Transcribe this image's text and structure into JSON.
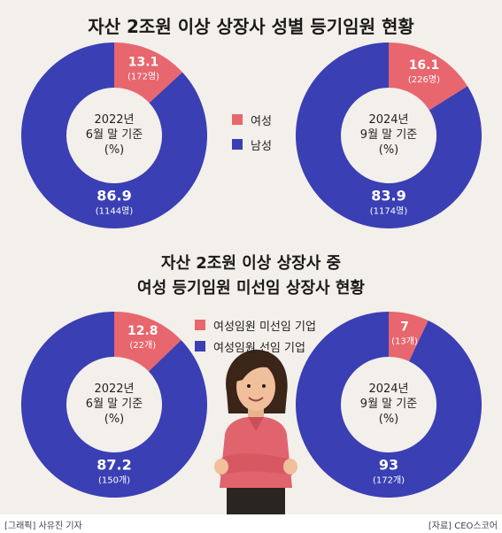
{
  "title_top": "자산 2조원 이상 상장사 성별 등기임원 현황",
  "title_bottom_line1": "자산 2조원 이상 상장사 중",
  "title_bottom_line2": "여성 등기임원 미선임 상장사 현황",
  "colors": {
    "pink": "#e8666e",
    "blue": "#3a3fb4",
    "background": "#f3efea"
  },
  "chart_data": [
    {
      "type": "pie",
      "center_label": [
        "2022년",
        "6월 말 기준",
        "(%)"
      ],
      "legend": [
        "여성",
        "남성"
      ],
      "slices": [
        {
          "label": "여성",
          "value": 13.1,
          "value_text": "13.1",
          "sub": "(172명)"
        },
        {
          "label": "남성",
          "value": 86.9,
          "value_text": "86.9",
          "sub": "(1144명)"
        }
      ]
    },
    {
      "type": "pie",
      "center_label": [
        "2024년",
        "9월 말 기준",
        "(%)"
      ],
      "legend": [
        "여성",
        "남성"
      ],
      "slices": [
        {
          "label": "여성",
          "value": 16.1,
          "value_text": "16.1",
          "sub": "(226명)"
        },
        {
          "label": "남성",
          "value": 83.9,
          "value_text": "83.9",
          "sub": "(1174명)"
        }
      ]
    },
    {
      "type": "pie",
      "center_label": [
        "2022년",
        "6월 말 기준",
        "(%)"
      ],
      "legend": [
        "여성임원 미선임 기업",
        "여성임원 선임 기업"
      ],
      "slices": [
        {
          "label": "여성임원 미선임 기업",
          "value": 12.8,
          "value_text": "12.8",
          "sub": "(22개)"
        },
        {
          "label": "여성임원 선임 기업",
          "value": 87.2,
          "value_text": "87.2",
          "sub": "(150개)"
        }
      ]
    },
    {
      "type": "pie",
      "center_label": [
        "2024년",
        "9월 말 기준",
        "(%)"
      ],
      "legend": [
        "여성임원 미선임 기업",
        "여성임원 선임 기업"
      ],
      "slices": [
        {
          "label": "여성임원 미선임 기업",
          "value": 7,
          "value_text": "7",
          "sub": "(13개)"
        },
        {
          "label": "여성임원 선임 기업",
          "value": 93,
          "value_text": "93",
          "sub": "(172개)"
        }
      ]
    }
  ],
  "legend_top": [
    {
      "label": "여성",
      "color": "#e8666e"
    },
    {
      "label": "남성",
      "color": "#3a3fb4"
    }
  ],
  "legend_bottom": [
    {
      "label": "여성임원 미선임 기업",
      "color": "#e8666e"
    },
    {
      "label": "여성임원 선임 기업",
      "color": "#3a3fb4"
    }
  ],
  "footer_left": "[그래픽] 사유진 기자",
  "footer_right": "[자료] CEO스코어"
}
